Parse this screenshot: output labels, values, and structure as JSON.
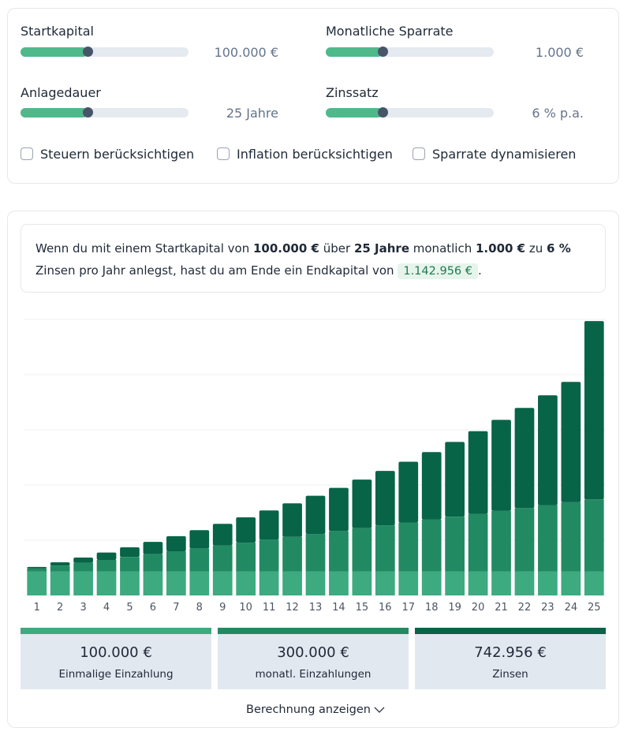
{
  "sliders": [
    {
      "label": "Startkapital",
      "value": "100.000 €",
      "fraction": 0.4
    },
    {
      "label": "Monatliche Sparrate",
      "value": "1.000 €",
      "fraction": 0.34
    },
    {
      "label": "Anlagedauer",
      "value": "25 Jahre",
      "fraction": 0.4
    },
    {
      "label": "Zinssatz",
      "value": "6 % p.a.",
      "fraction": 0.34
    }
  ],
  "checkboxes": [
    {
      "label": "Steuern berücksichtigen",
      "checked": false
    },
    {
      "label": "Inflation berücksichtigen",
      "checked": false
    },
    {
      "label": "Sparrate dynamisieren",
      "checked": false
    }
  ],
  "summary": {
    "t1": "Wenn du mit einem Startkapital von ",
    "start": "100.000 €",
    "t2": " über ",
    "years": "25 Jahre",
    "t3": " monatlich ",
    "rate": "1.000 €",
    "t4": " zu ",
    "interest": "6 %",
    "t5": " Zinsen pro Jahr anlegst, hast du am Ende ein Endkapital von ",
    "end": "1.142.956 €",
    "t6": "."
  },
  "colors": {
    "einmalig": "#3daa80",
    "einzahlungen": "#228a63",
    "zinsen": "#076447",
    "grid": "#eef0f3"
  },
  "chart_data": {
    "type": "bar",
    "stacked": true,
    "categories": [
      "1",
      "2",
      "3",
      "4",
      "5",
      "6",
      "7",
      "8",
      "9",
      "10",
      "11",
      "12",
      "13",
      "14",
      "15",
      "16",
      "17",
      "18",
      "19",
      "20",
      "21",
      "22",
      "23",
      "24",
      "25"
    ],
    "series": [
      {
        "values": [
          100000,
          100000,
          100000,
          100000,
          100000,
          100000,
          100000,
          100000,
          100000,
          100000,
          100000,
          100000,
          100000,
          100000,
          100000,
          100000,
          100000,
          100000,
          100000,
          100000,
          100000,
          100000,
          100000,
          100000,
          100000
        ]
      },
      {
        "values": [
          12000,
          24000,
          36000,
          48000,
          60000,
          72000,
          84000,
          96000,
          108000,
          120000,
          132000,
          144000,
          156000,
          168000,
          180000,
          192000,
          204000,
          216000,
          228000,
          240000,
          252000,
          264000,
          276000,
          288000,
          300000
        ]
      },
      {
        "values": [
          6500,
          13800,
          21800,
          30600,
          40500,
          51200,
          63000,
          76000,
          90100,
          105400,
          122000,
          139800,
          159100,
          180000,
          202400,
          226700,
          252900,
          281100,
          311500,
          344200,
          379400,
          417200,
          457900,
          501600,
          742956
        ]
      }
    ],
    "ylim": [
      0,
      1150000
    ],
    "grid": true
  },
  "stats": [
    {
      "value": "100.000 €",
      "label": "Einmalige Einzahlung"
    },
    {
      "value": "300.000 €",
      "label": "monatl. Einzahlungen"
    },
    {
      "value": "742.956 €",
      "label": "Zinsen"
    }
  ],
  "toggle": {
    "label": "Berechnung anzeigen"
  }
}
